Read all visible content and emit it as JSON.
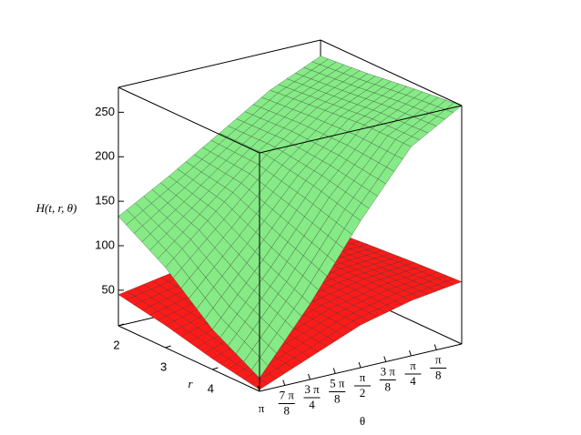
{
  "chart_data": {
    "type": "surface3d",
    "zlabel": "H(t, r, θ)",
    "rlabel": "r",
    "thetalabel": "θ",
    "r": [
      2,
      3,
      4,
      5
    ],
    "theta": [
      3.14159,
      2.35619,
      1.5708,
      0.7854,
      0
    ],
    "rlim": [
      2,
      5
    ],
    "thetalim": [
      0,
      3.14159
    ],
    "zlim": [
      10,
      278
    ],
    "rticks": [
      2,
      3,
      4
    ],
    "thetaticks": [
      {
        "value": 3.14159,
        "label": "π"
      },
      {
        "value": 2.74889,
        "label": "7 π/8"
      },
      {
        "value": 2.35619,
        "label": "3 π/4"
      },
      {
        "value": 1.9635,
        "label": "5 π/8"
      },
      {
        "value": 1.5708,
        "label": "π/2"
      },
      {
        "value": 1.1781,
        "label": "3 π/8"
      },
      {
        "value": 0.7854,
        "label": "π/4"
      },
      {
        "value": 0.3927,
        "label": "π/8"
      }
    ],
    "zticks": [
      50,
      100,
      150,
      200,
      250
    ],
    "series": [
      {
        "color": "#ff1a1a",
        "values": [
          [
            45,
            55,
            62,
            66,
            68
          ],
          [
            35,
            50,
            62,
            70,
            73
          ],
          [
            22,
            42,
            60,
            72,
            77
          ],
          [
            12,
            35,
            58,
            72,
            80
          ]
        ]
      },
      {
        "color": "#86ea86",
        "values": [
          [
            133,
            165,
            200,
            235,
            260
          ],
          [
            100,
            150,
            200,
            240,
            265
          ],
          [
            55,
            120,
            190,
            245,
            272
          ],
          [
            25,
            95,
            175,
            245,
            278
          ]
        ]
      }
    ]
  }
}
